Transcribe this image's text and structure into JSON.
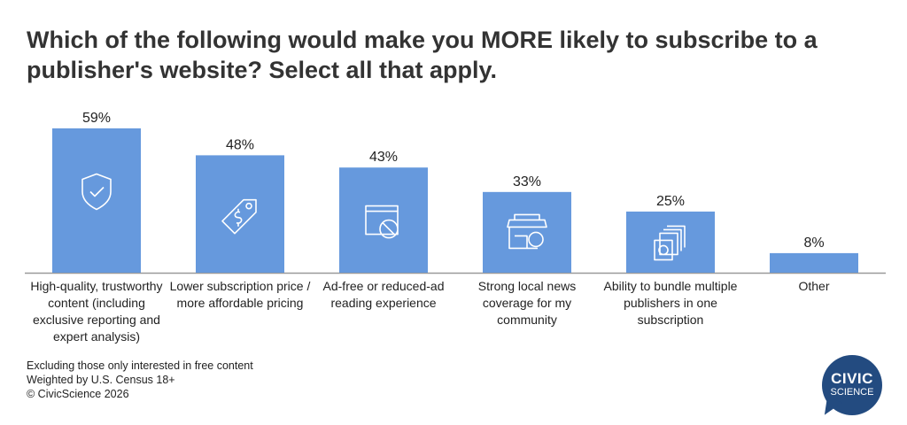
{
  "chart_data": {
    "type": "bar",
    "title": "Which of the following would make you MORE likely to subscribe to a publisher's website? Select all that apply.",
    "categories": [
      "High-quality, trustworthy content (including exclusive reporting and expert analysis)",
      "Lower subscription price / more affordable pricing",
      "Ad-free or reduced-ad reading experience",
      "Strong local news coverage for my community",
      "Ability to bundle multiple publishers in one subscription",
      "Other"
    ],
    "values": [
      59,
      48,
      43,
      33,
      25,
      8
    ],
    "data_labels": [
      "59%",
      "48%",
      "43%",
      "33%",
      "25%",
      "8%"
    ],
    "icons": [
      "shield-check-icon",
      "price-tag-icon",
      "ad-block-icon",
      "storefront-icon",
      "money-stack-icon",
      ""
    ],
    "bar_color": "#6699dd",
    "xlabel": "",
    "ylabel": "",
    "ylim": [
      0,
      65
    ],
    "grid": false
  },
  "footnotes": [
    "Excluding those only interested in free content",
    "Weighted by U.S. Census 18+",
    "© CivicScience 2026"
  ],
  "logo": {
    "line1": "CIVIC",
    "line2": "SCIENCE",
    "color": "#234b80"
  }
}
